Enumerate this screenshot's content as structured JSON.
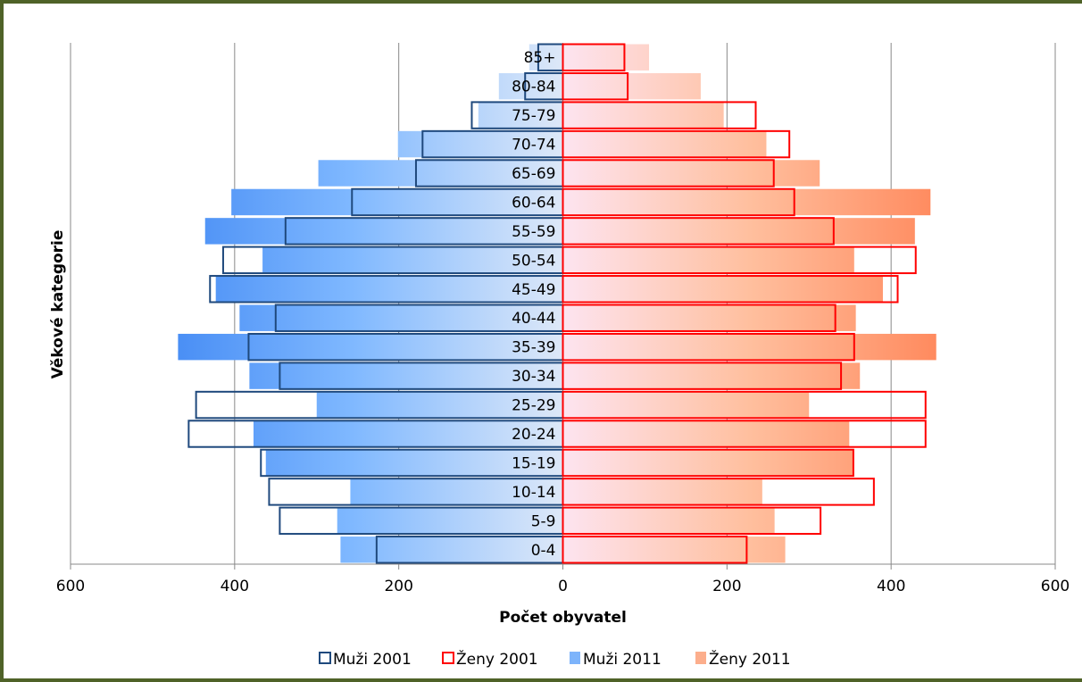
{
  "chart_data": {
    "type": "bar",
    "orientation": "horizontal",
    "layout": "population-pyramid",
    "categories": [
      "0-4",
      "5-9",
      "10-14",
      "15-19",
      "20-24",
      "25-29",
      "30-34",
      "35-39",
      "40-44",
      "45-49",
      "50-54",
      "55-59",
      "60-64",
      "65-69",
      "70-74",
      "75-79",
      "80-84",
      "85+"
    ],
    "series": [
      {
        "name": "Muži 2001",
        "side": "left",
        "style": "outline",
        "color": "#1f497d",
        "values": [
          227,
          345,
          358,
          368,
          456,
          447,
          345,
          383,
          350,
          430,
          414,
          338,
          257,
          179,
          171,
          111,
          46,
          30
        ]
      },
      {
        "name": "Ženy 2001",
        "side": "right",
        "style": "outline",
        "color": "#ff0000",
        "values": [
          224,
          314,
          379,
          354,
          442,
          442,
          339,
          355,
          332,
          408,
          430,
          330,
          282,
          257,
          276,
          235,
          79,
          75
        ]
      },
      {
        "name": "Muži 2011",
        "side": "left",
        "style": "gradient",
        "color": "#4f9dff",
        "values": [
          271,
          275,
          259,
          362,
          377,
          300,
          382,
          469,
          394,
          423,
          366,
          436,
          404,
          298,
          201,
          103,
          78,
          41
        ]
      },
      {
        "name": "Ženy 2011",
        "side": "right",
        "style": "gradient",
        "color": "#ff8c5a",
        "values": [
          271,
          258,
          243,
          353,
          349,
          300,
          362,
          455,
          357,
          390,
          355,
          429,
          448,
          313,
          248,
          196,
          168,
          105
        ]
      }
    ],
    "xlabel": "Počet obyvatel",
    "ylabel": "Věkové kategorie",
    "xlim": [
      -600,
      600
    ],
    "xticks": [
      -600,
      -400,
      -200,
      0,
      200,
      400,
      600
    ],
    "xtick_labels": [
      "600",
      "400",
      "200",
      "0",
      "200",
      "400",
      "600"
    ],
    "grid": true,
    "legend_position": "bottom"
  }
}
